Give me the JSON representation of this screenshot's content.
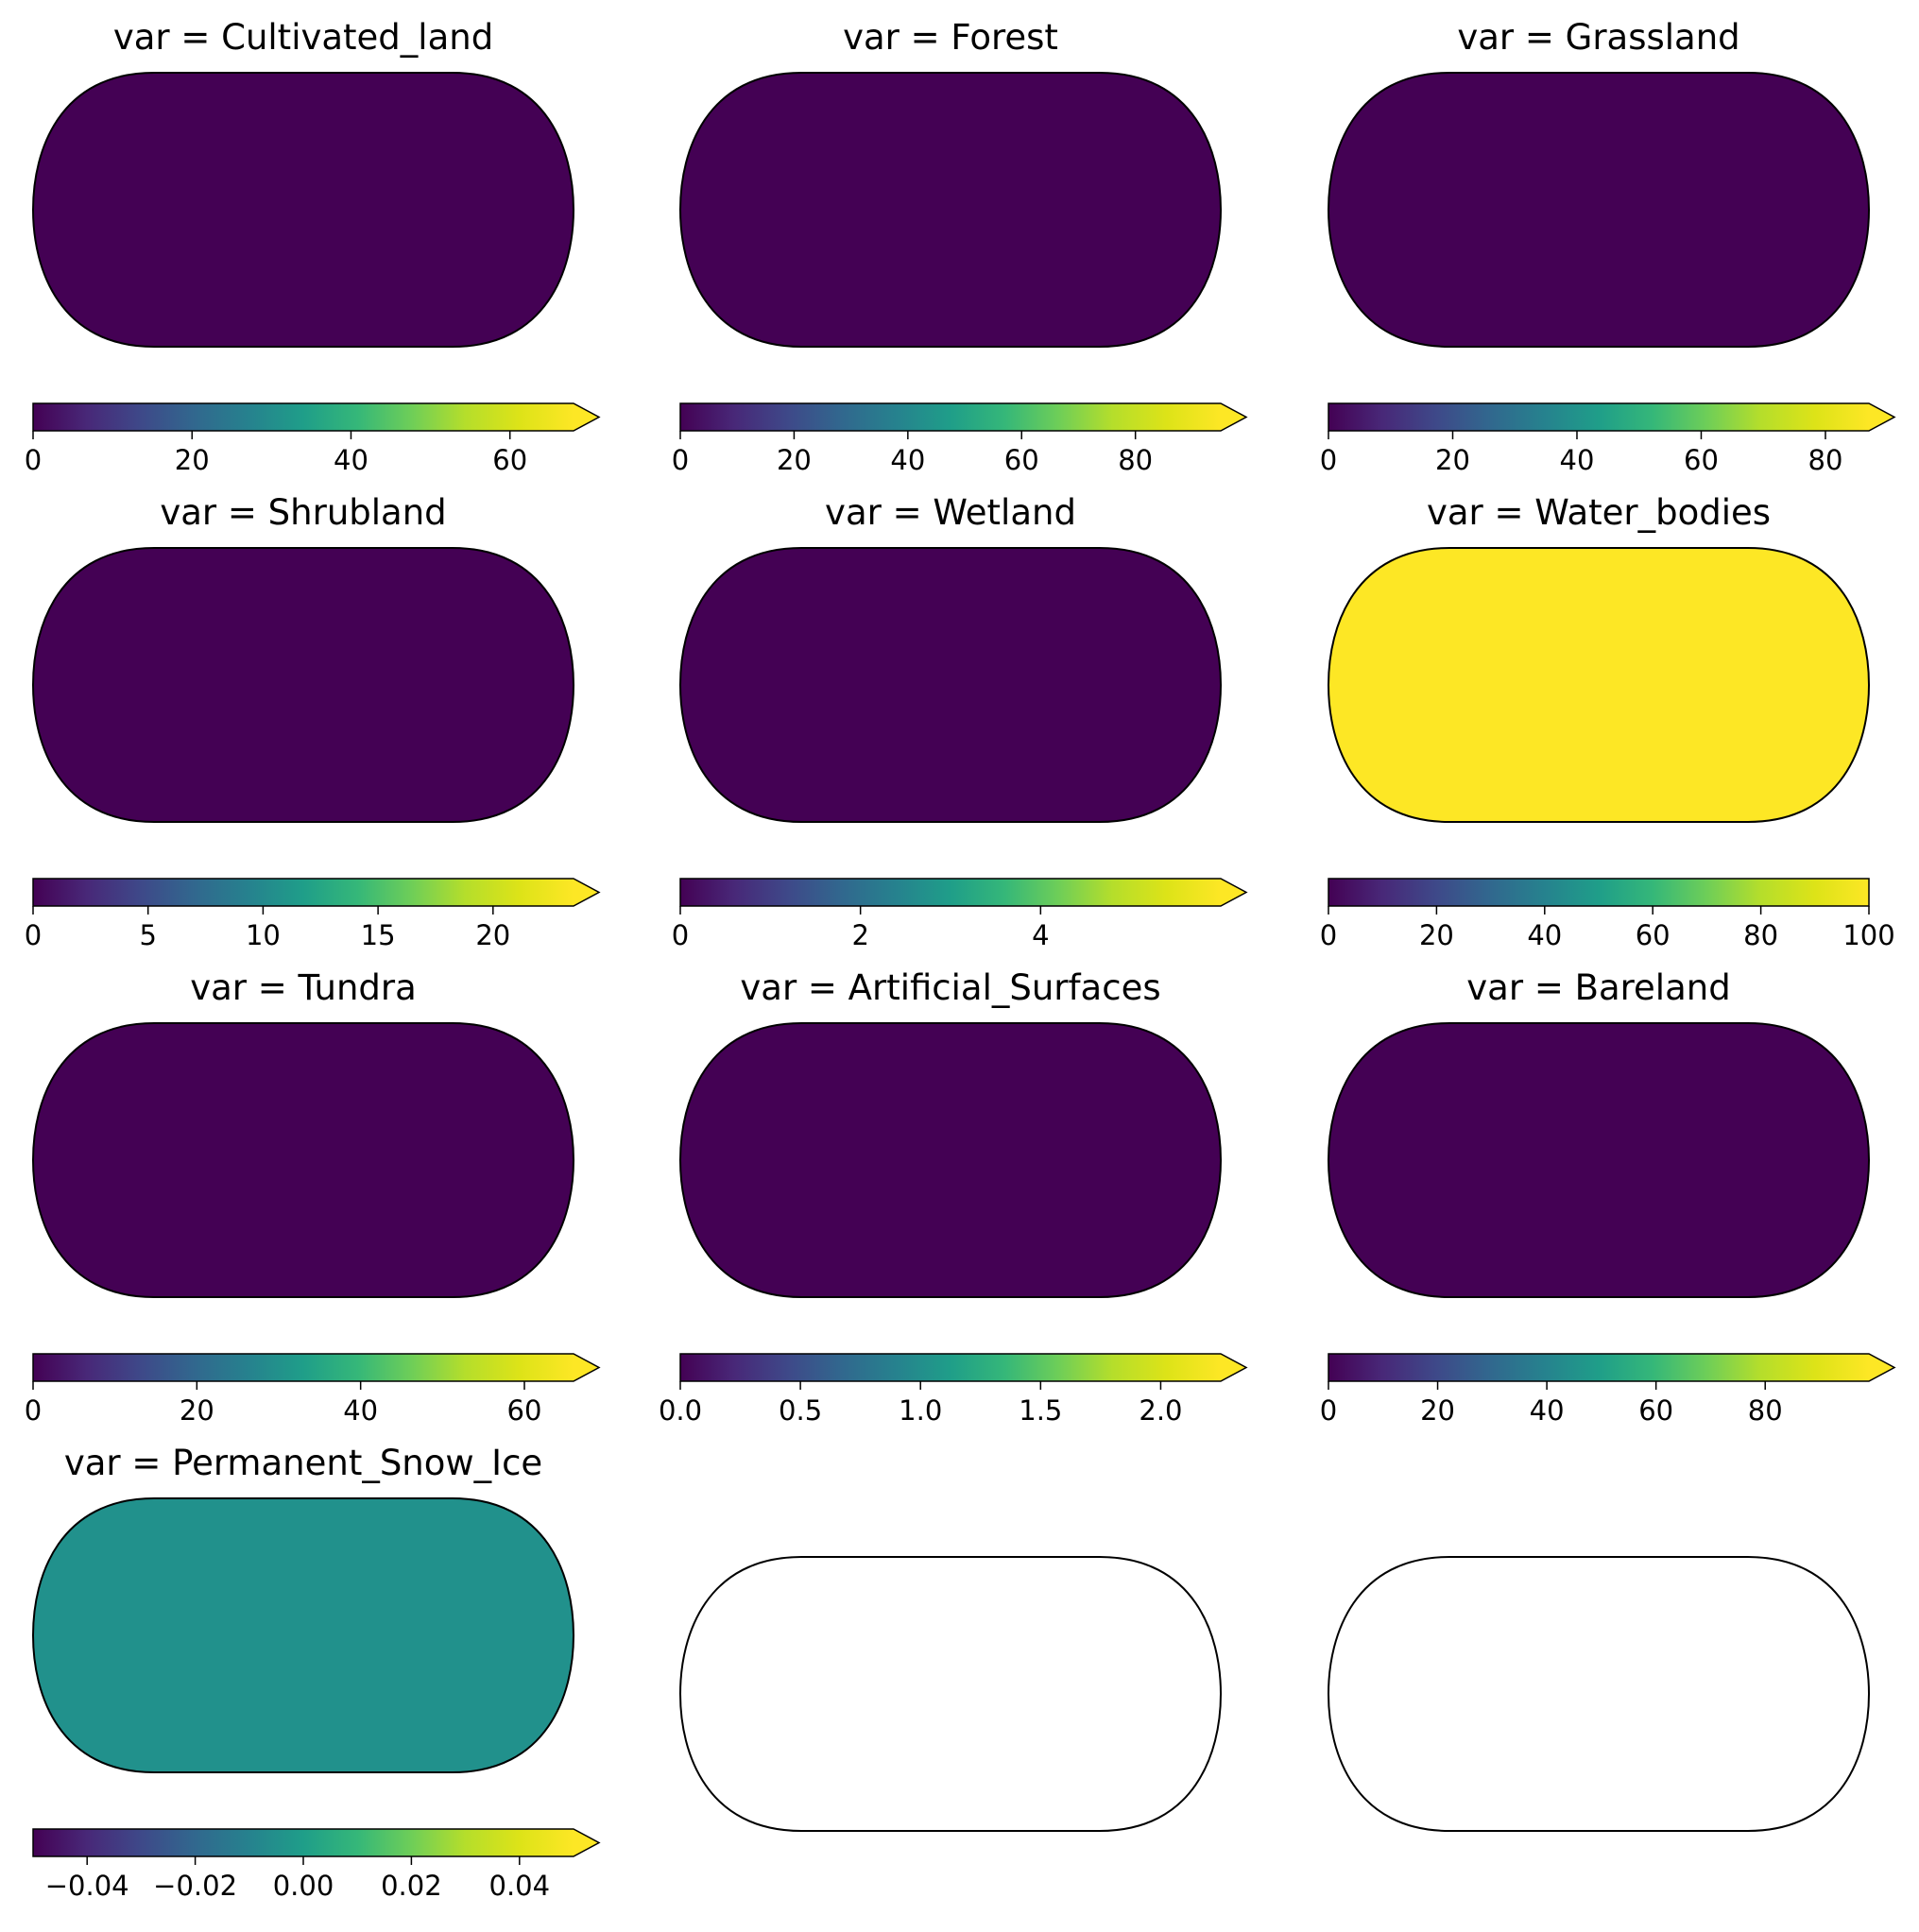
{
  "figure": {
    "panels": [
      {
        "title": "var = Cultivated_land",
        "fill": "#440154",
        "empty": false,
        "extend": "max",
        "vmin": 0,
        "vmax": 68,
        "ticks": [
          0,
          20,
          40,
          60
        ],
        "tick_labels": [
          "0",
          "20",
          "40",
          "60"
        ]
      },
      {
        "title": "var = Forest",
        "fill": "#440154",
        "empty": false,
        "extend": "max",
        "vmin": 0,
        "vmax": 95,
        "ticks": [
          0,
          20,
          40,
          60,
          80
        ],
        "tick_labels": [
          "0",
          "20",
          "40",
          "60",
          "80"
        ]
      },
      {
        "title": "var = Grassland",
        "fill": "#440154",
        "empty": false,
        "extend": "max",
        "vmin": 0,
        "vmax": 87,
        "ticks": [
          0,
          20,
          40,
          60,
          80
        ],
        "tick_labels": [
          "0",
          "20",
          "40",
          "60",
          "80"
        ]
      },
      {
        "title": "var = Shrubland",
        "fill": "#440154",
        "empty": false,
        "extend": "max",
        "vmin": 0,
        "vmax": 23.5,
        "ticks": [
          0,
          5,
          10,
          15,
          20
        ],
        "tick_labels": [
          "0",
          "5",
          "10",
          "15",
          "20"
        ]
      },
      {
        "title": "var = Wetland",
        "fill": "#440154",
        "empty": false,
        "extend": "max",
        "vmin": 0,
        "vmax": 6,
        "ticks": [
          0,
          2,
          4
        ],
        "tick_labels": [
          "0",
          "2",
          "4"
        ]
      },
      {
        "title": "var = Water_bodies",
        "fill": "#fde725",
        "empty": false,
        "extend": "neither",
        "vmin": 0,
        "vmax": 100,
        "ticks": [
          0,
          20,
          40,
          60,
          80,
          100
        ],
        "tick_labels": [
          "0",
          "20",
          "40",
          "60",
          "80",
          "100"
        ]
      },
      {
        "title": "var = Tundra",
        "fill": "#440154",
        "empty": false,
        "extend": "max",
        "vmin": 0,
        "vmax": 66,
        "ticks": [
          0,
          20,
          40,
          60
        ],
        "tick_labels": [
          "0",
          "20",
          "40",
          "60"
        ]
      },
      {
        "title": "var = Artificial_Surfaces",
        "fill": "#440154",
        "empty": false,
        "extend": "max",
        "vmin": 0,
        "vmax": 2.25,
        "ticks": [
          0,
          0.5,
          1,
          1.5,
          2
        ],
        "tick_labels": [
          "0.0",
          "0.5",
          "1.0",
          "1.5",
          "2.0"
        ]
      },
      {
        "title": "var = Bareland",
        "fill": "#440154",
        "empty": false,
        "extend": "max",
        "vmin": 0,
        "vmax": 99,
        "ticks": [
          0,
          20,
          40,
          60,
          80
        ],
        "tick_labels": [
          "0",
          "20",
          "40",
          "60",
          "80"
        ]
      },
      {
        "title": "var = Permanent_Snow_Ice",
        "fill": "#21918c",
        "empty": false,
        "extend": "max",
        "vmin": -0.05,
        "vmax": 0.05,
        "ticks": [
          -0.04,
          -0.02,
          0,
          0.02,
          0.04
        ],
        "tick_labels": [
          "−0.04",
          "−0.02",
          "0.00",
          "0.02",
          "0.04"
        ]
      },
      {
        "title": "",
        "fill": "#ffffff",
        "empty": true
      },
      {
        "title": "",
        "fill": "#ffffff",
        "empty": true
      }
    ]
  }
}
